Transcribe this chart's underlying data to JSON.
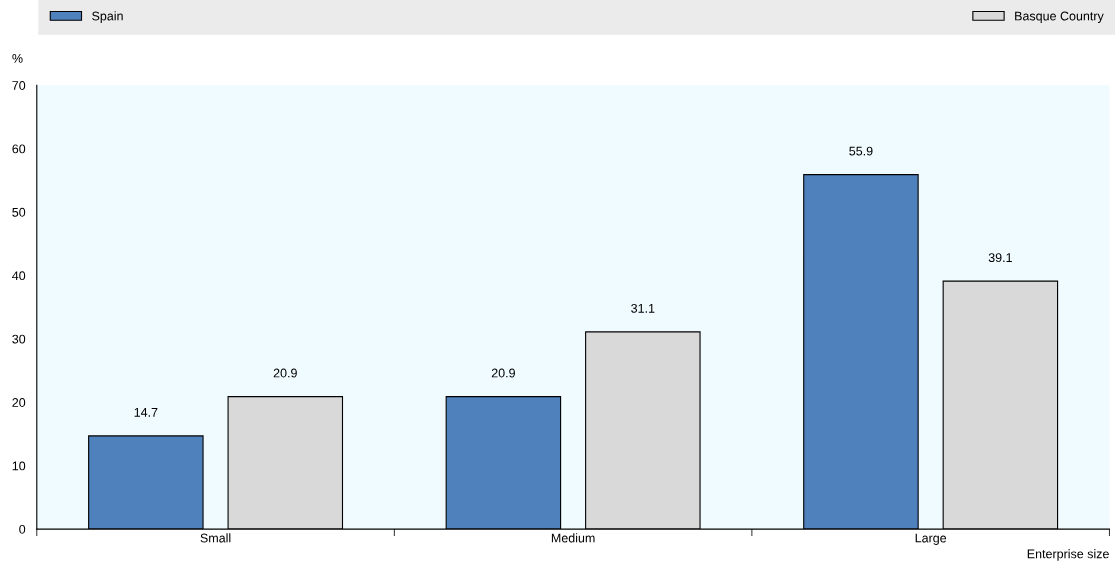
{
  "chart_data": {
    "type": "bar",
    "ylabel": "%",
    "xlabel": "Enterprise size",
    "categories": [
      "Small",
      "Medium",
      "Large"
    ],
    "series": [
      {
        "name": "Spain",
        "color": "#4f81bd",
        "values": [
          14.7,
          20.9,
          55.9
        ]
      },
      {
        "name": "Basque Country",
        "color": "#d9d9d9",
        "values": [
          20.9,
          31.1,
          39.1
        ]
      }
    ],
    "ylim": [
      0,
      70
    ],
    "yticks": [
      0,
      10,
      20,
      30,
      40,
      50,
      60,
      70
    ],
    "data_labels": true,
    "grid": false,
    "legend": "top"
  }
}
